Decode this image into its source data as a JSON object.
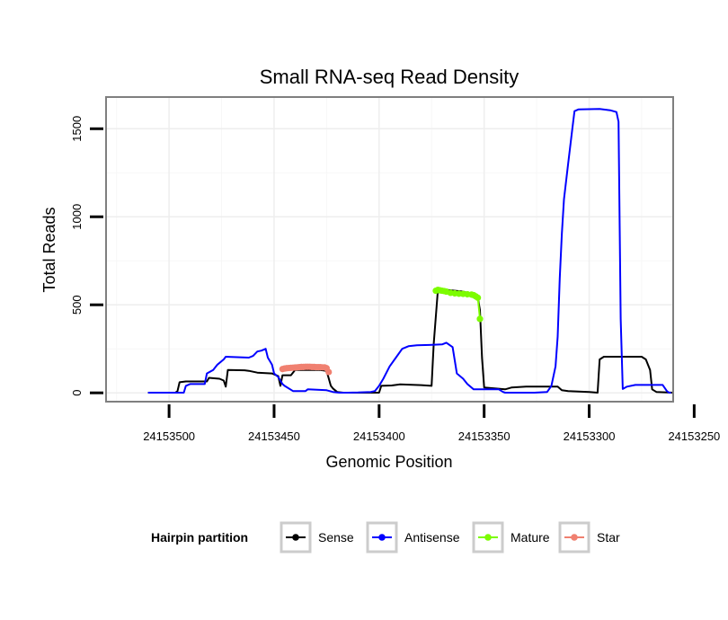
{
  "chart_data": {
    "type": "line",
    "title": "Small RNA-seq Read Density",
    "xlabel": "Genomic Position",
    "ylabel": "Total Reads",
    "xlim": [
      24153260,
      24153530
    ],
    "x_reversed": true,
    "ylim": [
      -50,
      1680
    ],
    "x_ticks": [
      24153500,
      24153450,
      24153400,
      24153350,
      24153300,
      24153250
    ],
    "x_tick_labels": [
      "24153500",
      "24153450",
      "24153400",
      "24153350",
      "24153300",
      "24153250"
    ],
    "y_ticks": [
      0,
      500,
      1000,
      1500
    ],
    "y_tick_labels": [
      "0",
      "500",
      "1000",
      "1500"
    ],
    "grid": true,
    "legend": {
      "title": "Hairpin partition",
      "position": "bottom",
      "entries": [
        {
          "name": "Sense",
          "color": "#000000"
        },
        {
          "name": "Antisense",
          "color": "#0000ff"
        },
        {
          "name": "Mature",
          "color": "#7cfc00"
        },
        {
          "name": "Star",
          "color": "#f08070"
        }
      ]
    },
    "series": [
      {
        "name": "Sense",
        "color": "#000000",
        "style": "line",
        "points": [
          [
            24153510,
            1
          ],
          [
            24153497,
            1
          ],
          [
            24153496,
            10
          ],
          [
            24153495,
            60
          ],
          [
            24153492,
            65
          ],
          [
            24153482,
            65
          ],
          [
            24153481,
            85
          ],
          [
            24153476,
            80
          ],
          [
            24153474,
            70
          ],
          [
            24153473,
            35
          ],
          [
            24153472,
            130
          ],
          [
            24153464,
            128
          ],
          [
            24153462,
            125
          ],
          [
            24153458,
            115
          ],
          [
            24153451,
            110
          ],
          [
            24153448,
            95
          ],
          [
            24153447,
            40
          ],
          [
            24153446,
            100
          ],
          [
            24153442,
            100
          ],
          [
            24153440,
            130
          ],
          [
            24153428,
            130
          ],
          [
            24153425,
            125
          ],
          [
            24153423,
            40
          ],
          [
            24153422,
            25
          ],
          [
            24153420,
            5
          ],
          [
            24153417,
            1
          ],
          [
            24153400,
            1
          ],
          [
            24153399,
            40
          ],
          [
            24153394,
            42
          ],
          [
            24153390,
            48
          ],
          [
            24153380,
            44
          ],
          [
            24153375,
            40
          ],
          [
            24153374,
            280
          ],
          [
            24153372,
            590
          ],
          [
            24153360,
            575
          ],
          [
            24153355,
            555
          ],
          [
            24153353,
            540
          ],
          [
            24153352,
            470
          ],
          [
            24153351,
            200
          ],
          [
            24153350,
            30
          ],
          [
            24153340,
            20
          ],
          [
            24153337,
            30
          ],
          [
            24153330,
            35
          ],
          [
            24153315,
            35
          ],
          [
            24153313,
            15
          ],
          [
            24153310,
            10
          ],
          [
            24153300,
            5
          ],
          [
            24153296,
            1
          ],
          [
            24153295,
            190
          ],
          [
            24153293,
            205
          ],
          [
            24153275,
            205
          ],
          [
            24153273,
            190
          ],
          [
            24153271,
            130
          ],
          [
            24153270,
            20
          ],
          [
            24153268,
            5
          ],
          [
            24153260,
            1
          ]
        ]
      },
      {
        "name": "Antisense",
        "color": "#0000ff",
        "style": "line",
        "points": [
          [
            24153510,
            1
          ],
          [
            24153493,
            1
          ],
          [
            24153492,
            40
          ],
          [
            24153490,
            50
          ],
          [
            24153483,
            50
          ],
          [
            24153482,
            110
          ],
          [
            24153479,
            130
          ],
          [
            24153477,
            160
          ],
          [
            24153474,
            190
          ],
          [
            24153473,
            205
          ],
          [
            24153462,
            200
          ],
          [
            24153460,
            210
          ],
          [
            24153458,
            235
          ],
          [
            24153456,
            240
          ],
          [
            24153454,
            250
          ],
          [
            24153453,
            200
          ],
          [
            24153451,
            160
          ],
          [
            24153450,
            110
          ],
          [
            24153448,
            90
          ],
          [
            24153446,
            50
          ],
          [
            24153445,
            40
          ],
          [
            24153441,
            10
          ],
          [
            24153435,
            10
          ],
          [
            24153434,
            20
          ],
          [
            24153425,
            15
          ],
          [
            24153422,
            5
          ],
          [
            24153419,
            1
          ],
          [
            24153415,
            1
          ],
          [
            24153410,
            2
          ],
          [
            24153404,
            5
          ],
          [
            24153402,
            10
          ],
          [
            24153400,
            40
          ],
          [
            24153398,
            80
          ],
          [
            24153395,
            150
          ],
          [
            24153392,
            200
          ],
          [
            24153389,
            250
          ],
          [
            24153386,
            265
          ],
          [
            24153382,
            270
          ],
          [
            24153376,
            272
          ],
          [
            24153370,
            275
          ],
          [
            24153368,
            285
          ],
          [
            24153365,
            260
          ],
          [
            24153363,
            110
          ],
          [
            24153360,
            80
          ],
          [
            24153358,
            50
          ],
          [
            24153355,
            20
          ],
          [
            24153343,
            20
          ],
          [
            24153341,
            5
          ],
          [
            24153340,
            1
          ],
          [
            24153326,
            1
          ],
          [
            24153320,
            5
          ],
          [
            24153318,
            40
          ],
          [
            24153316,
            150
          ],
          [
            24153315,
            320
          ],
          [
            24153314,
            650
          ],
          [
            24153313,
            900
          ],
          [
            24153312,
            1100
          ],
          [
            24153310,
            1300
          ],
          [
            24153308,
            1500
          ],
          [
            24153307,
            1600
          ],
          [
            24153305,
            1610
          ],
          [
            24153295,
            1612
          ],
          [
            24153290,
            1605
          ],
          [
            24153287,
            1595
          ],
          [
            24153286,
            1540
          ],
          [
            24153285,
            420
          ],
          [
            24153284,
            22
          ],
          [
            24153282,
            35
          ],
          [
            24153278,
            45
          ],
          [
            24153265,
            45
          ],
          [
            24153263,
            10
          ],
          [
            24153262,
            1
          ],
          [
            24153261,
            1
          ]
        ]
      },
      {
        "name": "Mature",
        "color": "#7cfc00",
        "style": "points",
        "points": [
          [
            24153373,
            580
          ],
          [
            24153372,
            585
          ],
          [
            24153371,
            582
          ],
          [
            24153370,
            580
          ],
          [
            24153369,
            578
          ],
          [
            24153368,
            575
          ],
          [
            24153366,
            568
          ],
          [
            24153364,
            565
          ],
          [
            24153362,
            563
          ],
          [
            24153360,
            562
          ],
          [
            24153358,
            560
          ],
          [
            24153356,
            558
          ],
          [
            24153355,
            555
          ],
          [
            24153354,
            548
          ],
          [
            24153353,
            540
          ],
          [
            24153352,
            420
          ]
        ]
      },
      {
        "name": "Star",
        "color": "#f08070",
        "style": "points",
        "points": [
          [
            24153446,
            135
          ],
          [
            24153445,
            138
          ],
          [
            24153444,
            140
          ],
          [
            24153443,
            141
          ],
          [
            24153442,
            142
          ],
          [
            24153441,
            143
          ],
          [
            24153440,
            144
          ],
          [
            24153439,
            145
          ],
          [
            24153438,
            146
          ],
          [
            24153437,
            147
          ],
          [
            24153436,
            147
          ],
          [
            24153435,
            148
          ],
          [
            24153434,
            148
          ],
          [
            24153433,
            148
          ],
          [
            24153432,
            147
          ],
          [
            24153431,
            147
          ],
          [
            24153430,
            146
          ],
          [
            24153429,
            146
          ],
          [
            24153428,
            146
          ],
          [
            24153427,
            145
          ],
          [
            24153426,
            145
          ],
          [
            24153425,
            140
          ],
          [
            24153424,
            118
          ]
        ]
      }
    ]
  }
}
